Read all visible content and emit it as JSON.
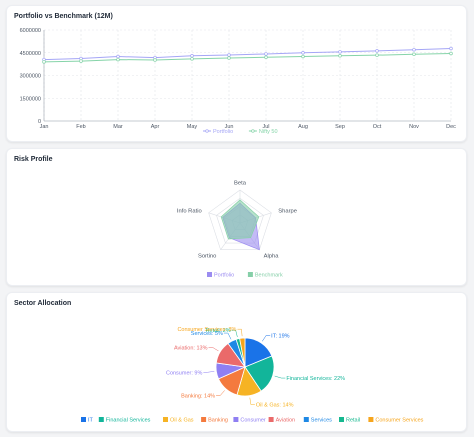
{
  "portfolio_card": {
    "title": "Portfolio vs Benchmark (12M)"
  },
  "risk_card": {
    "title": "Risk Profile"
  },
  "sector_card": {
    "title": "Sector Allocation"
  },
  "chart_data": [
    {
      "type": "line",
      "title": "Portfolio vs Benchmark (12M)",
      "x": [
        "Jan",
        "Feb",
        "Mar",
        "Apr",
        "May",
        "Jun",
        "Jul",
        "Aug",
        "Sep",
        "Oct",
        "Nov",
        "Dec"
      ],
      "yticks": [
        "0",
        "1500000",
        "3000000",
        "4500000",
        "6000000"
      ],
      "ylim": [
        0,
        6000000
      ],
      "grid": true,
      "legend": "bottom",
      "series": [
        {
          "name": "Portfolio",
          "color": "#a5a6f6",
          "values": [
            4050000,
            4120000,
            4250000,
            4180000,
            4300000,
            4350000,
            4420000,
            4500000,
            4560000,
            4620000,
            4700000,
            4780000
          ]
        },
        {
          "name": "Nifty 50",
          "color": "#86d4a9",
          "values": [
            3900000,
            3950000,
            4050000,
            4020000,
            4100000,
            4150000,
            4200000,
            4250000,
            4300000,
            4340000,
            4400000,
            4450000
          ]
        }
      ]
    },
    {
      "type": "radar",
      "title": "Risk Profile",
      "axes": [
        "Beta",
        "Sharpe",
        "Alpha",
        "Sortino",
        "Info Ratio"
      ],
      "rmax": 1,
      "legend": "bottom",
      "series": [
        {
          "name": "Portfolio",
          "color": "#9b8cf0",
          "values": [
            0.6,
            0.5,
            1.0,
            0.55,
            0.55
          ]
        },
        {
          "name": "Benchmark",
          "color": "#86cfa8",
          "values": [
            0.7,
            0.6,
            0.55,
            0.6,
            0.6
          ]
        }
      ]
    },
    {
      "type": "pie",
      "title": "Sector Allocation",
      "legend": "bottom",
      "slices": [
        {
          "name": "IT",
          "label": "IT: 19%",
          "value": 19,
          "color": "#1a73e8"
        },
        {
          "name": "Financial Services",
          "label": "Financial Services: 22%",
          "value": 22,
          "color": "#12b59a"
        },
        {
          "name": "Oil & Gas",
          "label": "Oil & Gas: 14%",
          "value": 14,
          "color": "#f6b324"
        },
        {
          "name": "Banking",
          "label": "Banking: 14%",
          "value": 14,
          "color": "#f47a3e"
        },
        {
          "name": "Consumer",
          "label": "Consumer: 9%",
          "value": 9,
          "color": "#8f7ff2"
        },
        {
          "name": "Aviation",
          "label": "Aviation: 13%",
          "value": 13,
          "color": "#ea6a6a"
        },
        {
          "name": "Services",
          "label": "Services: 5%",
          "value": 5,
          "color": "#1e88e5"
        },
        {
          "name": "Retail",
          "label": "Retail: 2%",
          "value": 2,
          "color": "#16b88f"
        },
        {
          "name": "Consumer Services",
          "label": "Consumer Services: 3%",
          "value": 3,
          "color": "#f6a51c"
        }
      ]
    }
  ]
}
